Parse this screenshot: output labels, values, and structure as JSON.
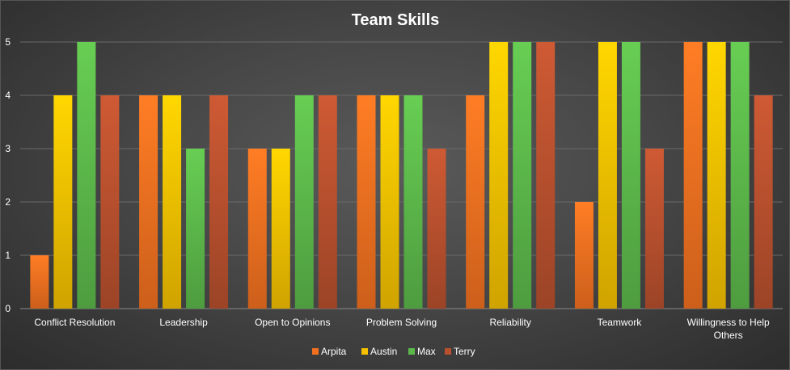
{
  "chart_data": {
    "type": "bar",
    "title": "Team Skills",
    "categories": [
      [
        "Conflict Resolution"
      ],
      [
        "Leadership"
      ],
      [
        "Open to Opinions"
      ],
      [
        "Problem Solving"
      ],
      [
        "Reliability"
      ],
      [
        "Teamwork"
      ],
      [
        "Willingness to Help",
        "Others"
      ]
    ],
    "series": [
      {
        "name": "Arpita",
        "color": "#f07020",
        "values": [
          1,
          4,
          3,
          4,
          4,
          2,
          5
        ]
      },
      {
        "name": "Austin",
        "color": "#f5c000",
        "values": [
          4,
          4,
          3,
          4,
          5,
          5,
          5
        ]
      },
      {
        "name": "Max",
        "color": "#5cb84a",
        "values": [
          5,
          3,
          4,
          4,
          5,
          5,
          5
        ]
      },
      {
        "name": "Terry",
        "color": "#b8502e",
        "values": [
          4,
          4,
          4,
          3,
          5,
          3,
          4
        ]
      }
    ],
    "ylim": [
      0,
      5
    ],
    "yticks": [
      0,
      1,
      2,
      3,
      4,
      5
    ],
    "grid": true,
    "legend_position": "bottom",
    "background": "#474747"
  }
}
